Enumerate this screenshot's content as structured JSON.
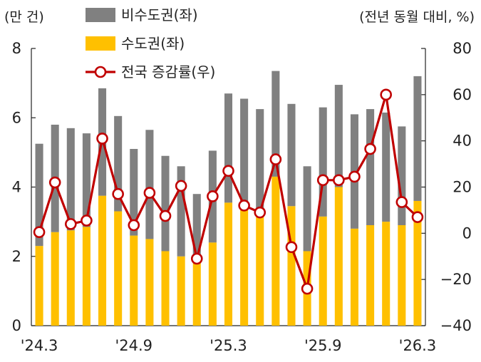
{
  "chart_data": {
    "type": "bar",
    "stacked": true,
    "left_unit": "(만 건)",
    "right_unit": "(전년 동월 대비, %)",
    "y_left": {
      "min": 0,
      "max": 8,
      "ticks": [
        "0",
        "2",
        "4",
        "6",
        "8"
      ]
    },
    "y_right": {
      "min": -40,
      "max": 80,
      "ticks": [
        "-40",
        "-20",
        "0",
        "20",
        "40",
        "60",
        "80"
      ]
    },
    "x_tick_labels": [
      {
        "index": 0,
        "label": "'24.3"
      },
      {
        "index": 6,
        "label": "'24.9"
      },
      {
        "index": 12,
        "label": "'25.3"
      },
      {
        "index": 18,
        "label": "'25.9"
      },
      {
        "index": 24,
        "label": "'26.3"
      }
    ],
    "legend": [
      "비수도권(좌)",
      "수도권(좌)",
      "전국 증감률(우)"
    ],
    "colors": {
      "non_capital": "#808080",
      "capital": "#FFC000",
      "growth": "#C00000",
      "growth_marker_fill": "#ffffff"
    },
    "series": [
      {
        "name": "수도권(좌)",
        "axis": "left",
        "kind": "bar",
        "values": [
          2.3,
          2.7,
          2.75,
          2.85,
          3.75,
          3.3,
          2.6,
          2.5,
          2.15,
          2.0,
          1.95,
          2.4,
          3.55,
          3.4,
          3.15,
          4.3,
          3.45,
          2.15,
          3.15,
          4.0,
          2.8,
          2.9,
          3.0,
          2.9,
          3.6
        ]
      },
      {
        "name": "비수도권(좌)",
        "axis": "left",
        "kind": "bar",
        "values": [
          2.95,
          3.1,
          2.95,
          2.7,
          3.1,
          2.75,
          2.5,
          3.15,
          2.75,
          2.6,
          1.85,
          2.65,
          3.15,
          3.15,
          3.1,
          3.05,
          2.95,
          2.45,
          3.15,
          2.95,
          3.3,
          3.35,
          3.15,
          2.85,
          3.6
        ]
      },
      {
        "name": "전국 증감률(우)",
        "axis": "right",
        "kind": "line",
        "values": [
          0.5,
          22,
          4,
          5.5,
          41,
          17,
          3.5,
          17.5,
          7.5,
          20.5,
          -11,
          16,
          27,
          12,
          9,
          32,
          -6,
          -24,
          23,
          23,
          24.5,
          36.5,
          60,
          13.5,
          7
        ]
      }
    ]
  }
}
